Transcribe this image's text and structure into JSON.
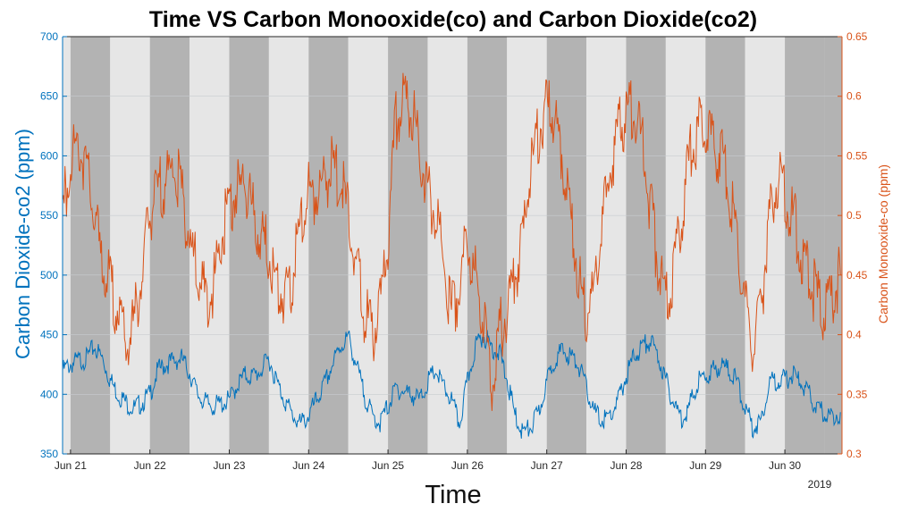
{
  "chart_data": {
    "type": "line",
    "title": "Time VS Carbon Monooxide(co) and Carbon Dioxide(co2)",
    "xlabel": "Time",
    "year_label": "2019",
    "x_ticks": [
      "Jun 21",
      "Jun 22",
      "Jun 23",
      "Jun 24",
      "Jun 25",
      "Jun 26",
      "Jun 27",
      "Jun 28",
      "Jun 29",
      "Jun 30"
    ],
    "grid": true,
    "left_axis": {
      "label": "Carbon Dioxide-co2 (ppm)",
      "ylim": [
        350,
        700
      ],
      "ticks": [
        350,
        400,
        450,
        500,
        550,
        600,
        650,
        700
      ],
      "color": "#0072bd"
    },
    "right_axis": {
      "label": "Carbon Monooxide-co (ppm)",
      "ylim": [
        0.3,
        0.65
      ],
      "ticks": [
        "0.3",
        "0.35",
        "0.4",
        "0.45",
        "0.5",
        "0.55",
        "0.6",
        "0.65"
      ],
      "color": "#d95319"
    },
    "background_bands": [
      "#b3b3b3",
      "#e6e6e6"
    ],
    "series": [
      {
        "axis": "left",
        "color": "#0072bd",
        "x": [
          20.9,
          21.0,
          21.1,
          21.2,
          21.3,
          21.4,
          21.5,
          21.6,
          21.7,
          21.8,
          21.9,
          22.0,
          22.1,
          22.2,
          22.3,
          22.4,
          22.5,
          22.6,
          22.7,
          22.8,
          22.9,
          23.0,
          23.1,
          23.2,
          23.3,
          23.4,
          23.5,
          23.6,
          23.7,
          23.8,
          23.9,
          24.0,
          24.1,
          24.2,
          24.3,
          24.4,
          24.5,
          24.6,
          24.7,
          24.8,
          24.9,
          25.0,
          25.1,
          25.2,
          25.3,
          25.4,
          25.5,
          25.6,
          25.7,
          25.8,
          25.9,
          26.0,
          26.1,
          26.2,
          26.3,
          26.4,
          26.5,
          26.6,
          26.7,
          26.8,
          26.9,
          27.0,
          27.1,
          27.2,
          27.3,
          27.4,
          27.5,
          27.6,
          27.7,
          27.8,
          27.9,
          28.0,
          28.1,
          28.2,
          28.3,
          28.4,
          28.5,
          28.6,
          28.7,
          28.8,
          28.9,
          29.0,
          29.1,
          29.2,
          29.3,
          29.4,
          29.5,
          29.6,
          29.7,
          29.8,
          29.9,
          30.0,
          30.1,
          30.2,
          30.3,
          30.4,
          30.5,
          30.6,
          30.7
        ],
        "y": [
          420,
          425,
          428,
          430,
          440,
          430,
          412,
          400,
          393,
          388,
          393,
          400,
          420,
          425,
          428,
          430,
          418,
          400,
          393,
          390,
          392,
          395,
          408,
          416,
          415,
          420,
          430,
          410,
          395,
          382,
          375,
          382,
          395,
          408,
          425,
          440,
          448,
          425,
          400,
          382,
          376,
          390,
          405,
          402,
          400,
          395,
          410,
          420,
          406,
          395,
          375,
          410,
          440,
          450,
          440,
          435,
          412,
          382,
          368,
          372,
          385,
          410,
          430,
          436,
          432,
          425,
          405,
          385,
          378,
          382,
          395,
          415,
          432,
          440,
          445,
          432,
          412,
          392,
          380,
          390,
          410,
          415,
          420,
          425,
          420,
          410,
          388,
          372,
          378,
          410,
          412,
          412,
          416,
          410,
          400,
          388,
          384,
          381,
          385
        ]
      },
      {
        "axis": "right",
        "color": "#d95319",
        "x": [
          20.9,
          21.0,
          21.1,
          21.2,
          21.3,
          21.4,
          21.5,
          21.6,
          21.7,
          21.8,
          21.9,
          22.0,
          22.1,
          22.2,
          22.3,
          22.4,
          22.5,
          22.6,
          22.7,
          22.8,
          22.9,
          23.0,
          23.1,
          23.2,
          23.3,
          23.4,
          23.5,
          23.6,
          23.7,
          23.8,
          23.9,
          24.0,
          24.1,
          24.2,
          24.3,
          24.4,
          24.5,
          24.6,
          24.7,
          24.8,
          24.9,
          25.0,
          25.1,
          25.2,
          25.3,
          25.4,
          25.5,
          25.6,
          25.7,
          25.8,
          25.9,
          26.0,
          26.1,
          26.2,
          26.3,
          26.4,
          26.5,
          26.6,
          26.7,
          26.8,
          26.9,
          27.0,
          27.1,
          27.2,
          27.3,
          27.4,
          27.5,
          27.6,
          27.7,
          27.8,
          27.9,
          28.0,
          28.1,
          28.2,
          28.3,
          28.4,
          28.5,
          28.6,
          28.7,
          28.8,
          28.9,
          29.0,
          29.1,
          29.2,
          29.3,
          29.4,
          29.5,
          29.6,
          29.7,
          29.8,
          29.9,
          30.0,
          30.1,
          30.2,
          30.3,
          30.4,
          30.5,
          30.6,
          30.7
        ],
        "y": [
          0.5,
          0.55,
          0.56,
          0.54,
          0.5,
          0.46,
          0.44,
          0.42,
          0.39,
          0.41,
          0.45,
          0.5,
          0.52,
          0.53,
          0.54,
          0.52,
          0.48,
          0.45,
          0.43,
          0.44,
          0.48,
          0.51,
          0.52,
          0.53,
          0.5,
          0.48,
          0.47,
          0.44,
          0.43,
          0.45,
          0.49,
          0.52,
          0.52,
          0.53,
          0.54,
          0.53,
          0.5,
          0.46,
          0.42,
          0.4,
          0.42,
          0.48,
          0.58,
          0.6,
          0.59,
          0.55,
          0.52,
          0.5,
          0.46,
          0.42,
          0.44,
          0.48,
          0.45,
          0.42,
          0.36,
          0.4,
          0.42,
          0.45,
          0.48,
          0.54,
          0.57,
          0.59,
          0.58,
          0.55,
          0.5,
          0.45,
          0.42,
          0.44,
          0.49,
          0.54,
          0.57,
          0.58,
          0.59,
          0.56,
          0.51,
          0.46,
          0.43,
          0.45,
          0.5,
          0.55,
          0.57,
          0.58,
          0.56,
          0.55,
          0.52,
          0.48,
          0.43,
          0.39,
          0.42,
          0.5,
          0.53,
          0.52,
          0.5,
          0.47,
          0.45,
          0.43,
          0.42,
          0.43,
          0.45
        ]
      }
    ]
  }
}
